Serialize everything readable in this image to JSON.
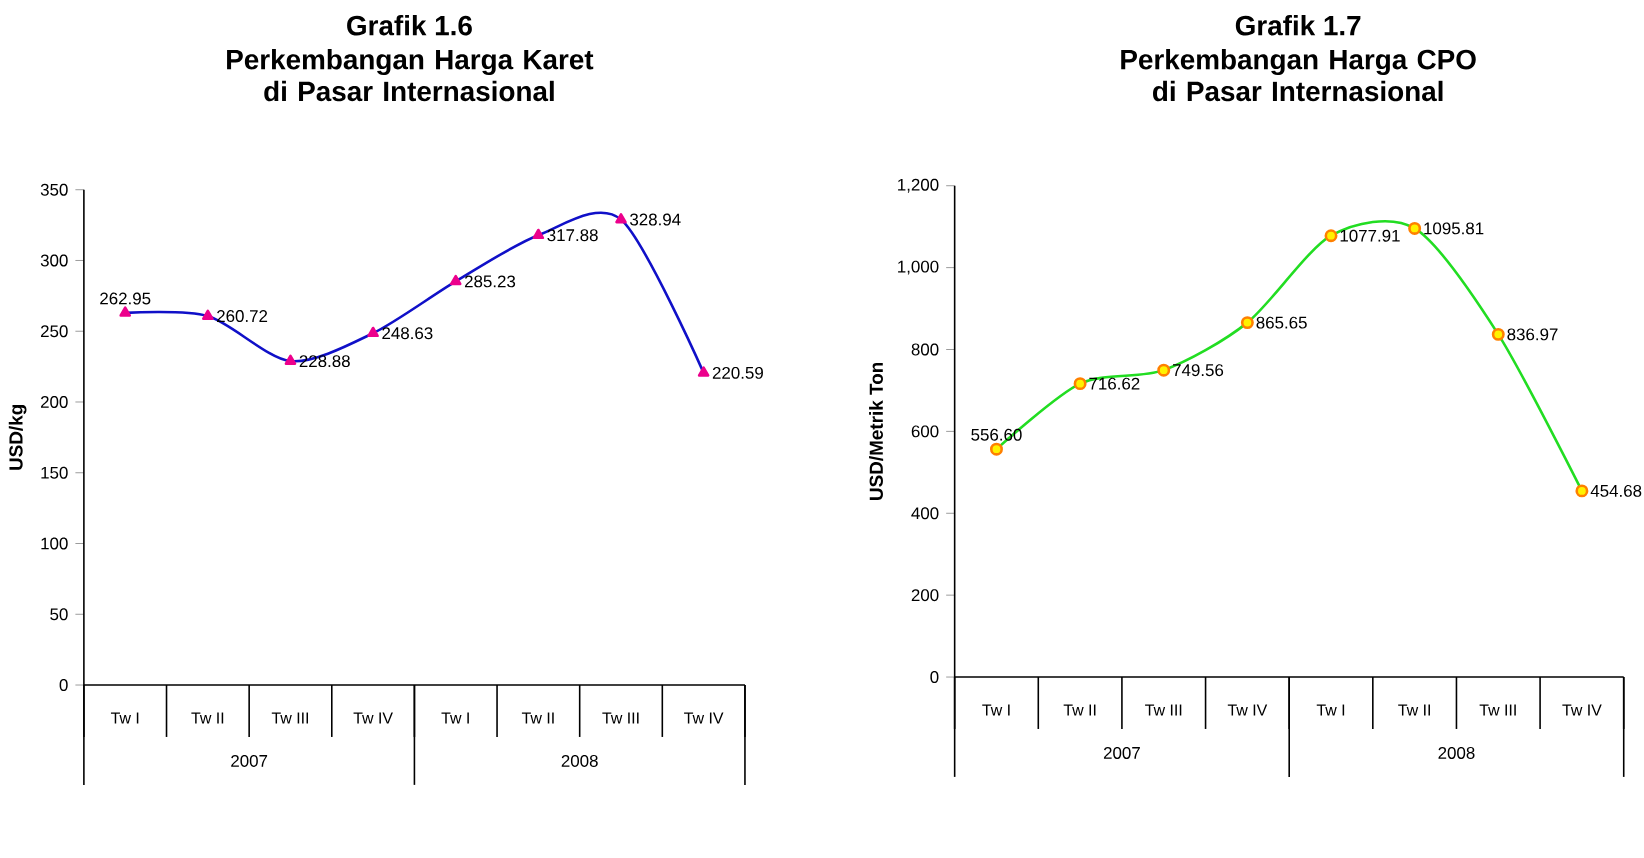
{
  "chart_data": [
    {
      "type": "line",
      "title": "Grafik 1.6",
      "subtitle": "Perkembangan Harga Karet di Pasar Internasional",
      "ylabel": "USD/kg",
      "categories": [
        "Tw I",
        "Tw II",
        "Tw III",
        "Tw IV",
        "Tw I",
        "Tw II",
        "Tw III",
        "Tw IV"
      ],
      "annotations": [
        "2007",
        "2008"
      ],
      "series": [
        {
          "color": "#1010c8",
          "values": [
            262.95,
            260.72,
            228.88,
            248.63,
            285.23,
            317.88,
            328.94,
            220.59
          ],
          "value_labels": [
            "262.95",
            "260.72",
            "228.88",
            "248.63",
            "285.23",
            "317.88",
            "328.94",
            "220.59"
          ]
        }
      ],
      "ylim": [
        0,
        350
      ],
      "yticks": [
        0,
        50,
        100,
        150,
        200,
        250,
        300,
        350
      ],
      "marker": "triangle"
    },
    {
      "type": "line",
      "title": "Grafik 1.7",
      "subtitle": "Perkembangan Harga CPO di Pasar Internasional",
      "ylabel": "USD/Metrik Ton",
      "categories": [
        "Tw I",
        "Tw II",
        "Tw III",
        "Tw IV",
        "Tw I",
        "Tw II",
        "Tw III",
        "Tw IV"
      ],
      "annotations": [
        "2007",
        "2008"
      ],
      "series": [
        {
          "color": "#22dd22",
          "values": [
            556.6,
            716.62,
            749.56,
            865.65,
            1077.91,
            1095.81,
            836.97,
            454.68
          ],
          "value_labels": [
            "556.60",
            "716.62",
            "749.56",
            "865.65",
            "1077.91",
            "1095.81",
            "836.97",
            "454.68"
          ]
        }
      ],
      "ylim": [
        0,
        1200
      ],
      "yticks": [
        0,
        200,
        400,
        600,
        800,
        {
          "value": 1000,
          "label": "1,000"
        },
        {
          "value": 1200,
          "label": "1,200"
        }
      ],
      "marker": "circle"
    }
  ]
}
